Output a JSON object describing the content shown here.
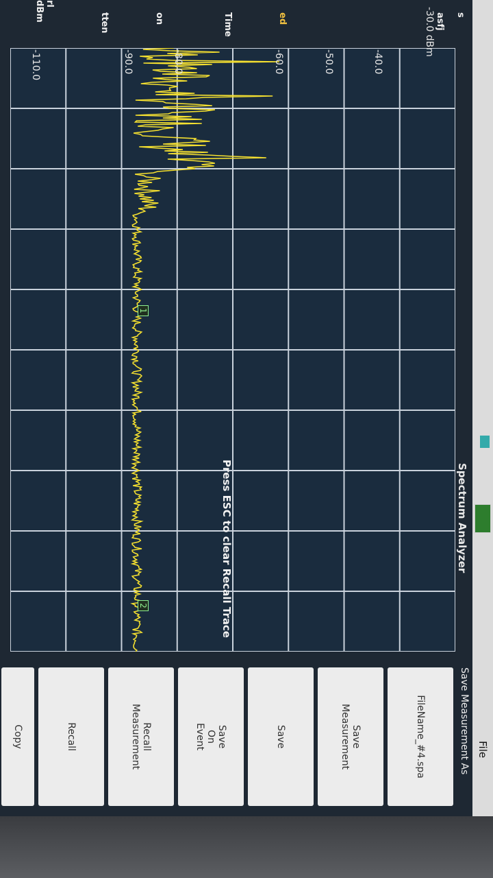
{
  "window": {
    "file_menu": "File",
    "app_title": "Spectrum Analyzer",
    "status_icon": "battery-icon"
  },
  "plot": {
    "ref_label": "-30.0 dBm",
    "y_ticks": [
      "-40.0",
      "-50.0",
      "-60.0",
      "-80.0",
      "-90.0",
      "-110.0"
    ],
    "message": "Press ESC to clear Recall Trace",
    "marker1": "1",
    "marker2": "2",
    "trace_color": "#f5e030",
    "grid_color": "#c9d2dc"
  },
  "side": {
    "item1": "rl",
    "item2": "dBm",
    "item3": "tten",
    "item4": "on",
    "item5": "Time",
    "item6": "ed",
    "item7": "asfj",
    "item8": "s"
  },
  "panel": {
    "title": "Save Measurement As",
    "filename": "FileName_#4.spa",
    "buttons": [
      {
        "line1": "Save",
        "line2": "Measurement"
      },
      {
        "line1": "Save",
        "line2": ""
      },
      {
        "line1": "Save",
        "line2": "On",
        "line3": "Event"
      },
      {
        "line1": "Recall",
        "line2": "Measurement"
      },
      {
        "line1": "Recall",
        "line2": ""
      },
      {
        "line1": "Copy",
        "line2": ""
      }
    ]
  }
}
